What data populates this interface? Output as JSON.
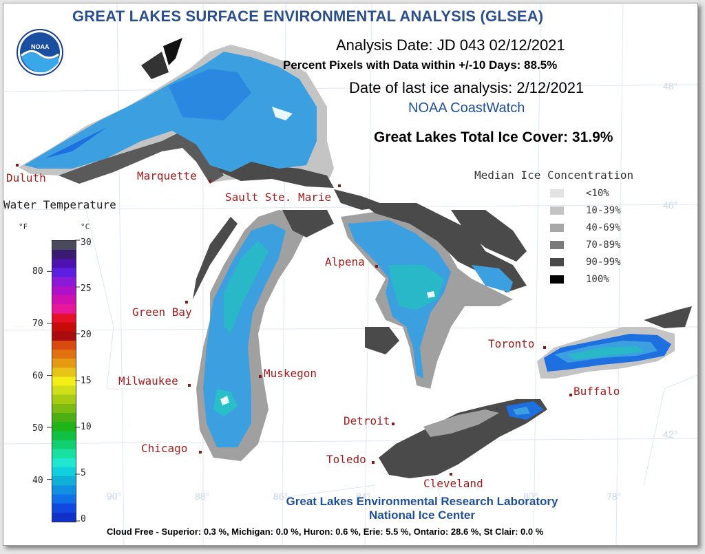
{
  "title": "GREAT LAKES SURFACE ENVIRONMENTAL ANALYSIS (GLSEA)",
  "logo_text": "NOAA",
  "analysis_date": "Analysis Date:  JD 043 02/12/2021",
  "percent_pixels": "Percent Pixels with Data within +/-10 Days:  88.5%",
  "ice_analysis_date": "Date of last ice analysis: 2/12/2021",
  "coastwatch": "NOAA CoastWatch",
  "total_ice": "Great Lakes Total Ice Cover:  31.9%",
  "ice_legend": {
    "title": "Median Ice Concentration",
    "items": [
      {
        "label": "<10%",
        "color": "#e3e3e3"
      },
      {
        "label": "10-39%",
        "color": "#c4c4c4"
      },
      {
        "label": "40-69%",
        "color": "#a7a7a7"
      },
      {
        "label": "70-89%",
        "color": "#7a7a7a"
      },
      {
        "label": "90-99%",
        "color": "#4a4a4a"
      },
      {
        "label": "100%",
        "color": "#050505"
      }
    ]
  },
  "water_temp": {
    "title": "Water Temperature",
    "unit_f": "°F",
    "unit_c": "°C",
    "ticks_f": [
      "80",
      "70",
      "60",
      "50",
      "40"
    ],
    "ticks_c": [
      "30",
      "25",
      "20",
      "15",
      "10",
      "5",
      "0"
    ],
    "colors": [
      "#4a4a5e",
      "#3a1a72",
      "#4b12b0",
      "#5c1ee0",
      "#8a1ad6",
      "#b010c8",
      "#d011b0",
      "#e6179a",
      "#e6102a",
      "#c80a0a",
      "#a80c0c",
      "#d84a10",
      "#e07010",
      "#e59a12",
      "#e6c415",
      "#f2ee16",
      "#d0e018",
      "#a8cc14",
      "#7cbc12",
      "#4cb012",
      "#20b418",
      "#10c040",
      "#10d070",
      "#18e0a0",
      "#20e8d0",
      "#10d0e0",
      "#10b0d8",
      "#1090e0",
      "#1070e8",
      "#1048e0",
      "#1030c8"
    ]
  },
  "cities": {
    "duluth": "Duluth",
    "marquette": "Marquette",
    "sault": "Sault Ste. Marie",
    "green_bay": "Green Bay",
    "milwaukee": "Milwaukee",
    "muskegon": "Muskegon",
    "chicago": "Chicago",
    "alpena": "Alpena",
    "detroit": "Detroit",
    "toledo": "Toledo",
    "cleveland": "Cleveland",
    "toronto": "Toronto",
    "buffalo": "Buffalo"
  },
  "gridlabels": {
    "lat48": "48°",
    "lat46": "46°",
    "lat42": "42°",
    "lon90": "90°",
    "lon88": "88°",
    "lon86": "86°",
    "lon84": "84°",
    "lon80": "80°",
    "lon78": "78°"
  },
  "footer": {
    "line1": "Great Lakes Environmental Research Laboratory",
    "line2": "National Ice Center",
    "cloud_free": "Cloud Free - Superior:   0.3 %, Michigan:   0.0 %, Huron:   0.6 %, Erie:  5.5 %, Ontario: 28.6 %, St Clair:  0.0 %"
  }
}
